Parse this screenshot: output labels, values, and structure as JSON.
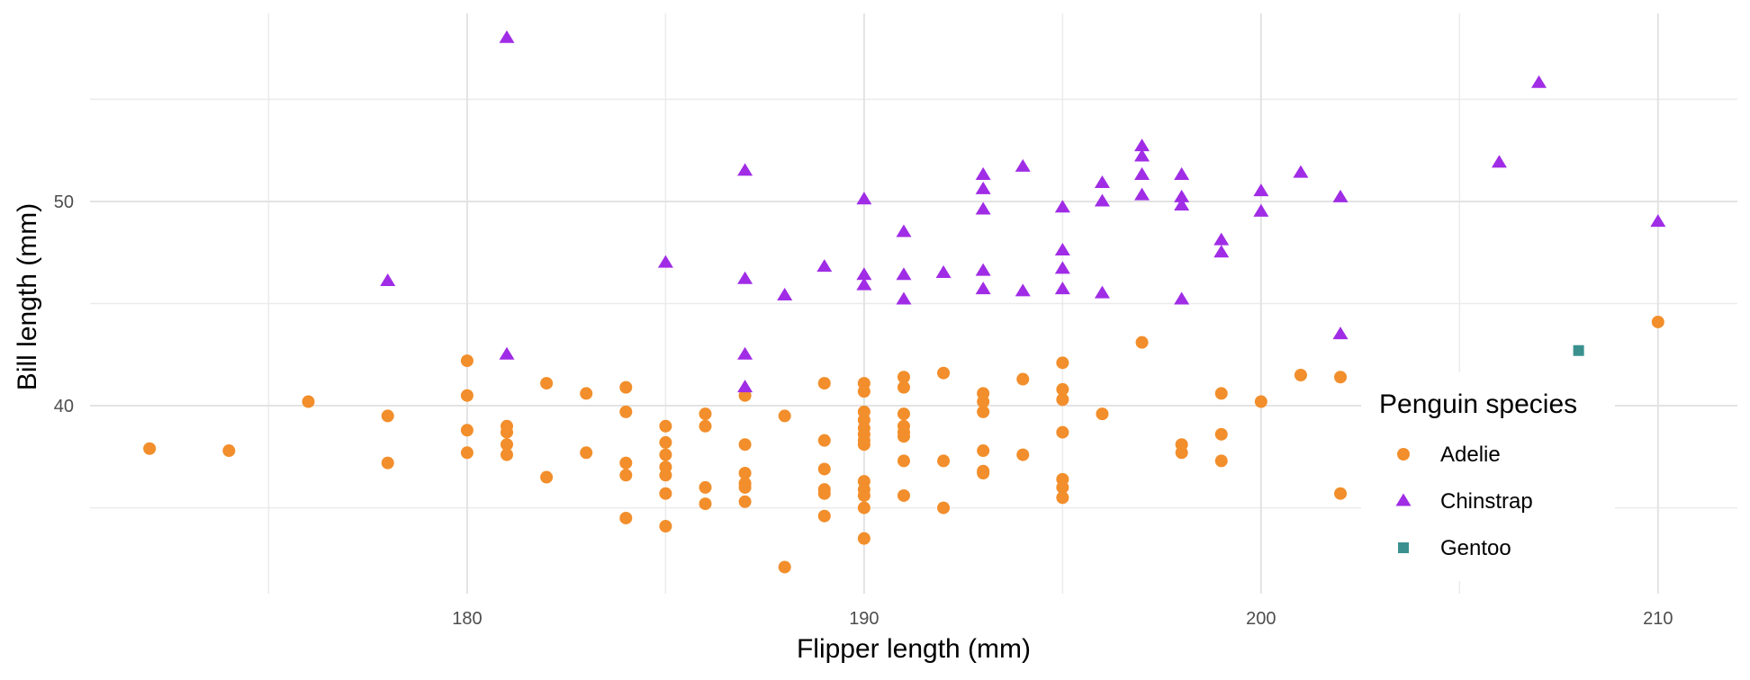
{
  "chart_data": {
    "type": "scatter",
    "title": "",
    "xlabel": "Flipper length (mm)",
    "ylabel": "Bill length (mm)",
    "xlim": [
      170.5,
      212
    ],
    "ylim": [
      30.8,
      59.2
    ],
    "x_ticks": [
      180,
      190,
      200,
      210
    ],
    "y_ticks": [
      40,
      50
    ],
    "grid": true,
    "legend": {
      "title": "Penguin species",
      "placement": "right"
    },
    "series": [
      {
        "name": "Adelie",
        "marker": "circle",
        "color": "#f28e2b",
        "points": [
          [
            172,
            37.9
          ],
          [
            174,
            37.8
          ],
          [
            176,
            40.2
          ],
          [
            178,
            39.5
          ],
          [
            178,
            37.2
          ],
          [
            180,
            42.2
          ],
          [
            180,
            40.5
          ],
          [
            180,
            38.8
          ],
          [
            180,
            37.7
          ],
          [
            181,
            39.0
          ],
          [
            181,
            38.7
          ],
          [
            181,
            38.1
          ],
          [
            181,
            37.6
          ],
          [
            182,
            41.1
          ],
          [
            182,
            36.5
          ],
          [
            183,
            40.6
          ],
          [
            183,
            37.7
          ],
          [
            184,
            40.9
          ],
          [
            184,
            39.7
          ],
          [
            184,
            37.2
          ],
          [
            184,
            36.6
          ],
          [
            184,
            34.5
          ],
          [
            185,
            39.0
          ],
          [
            185,
            38.2
          ],
          [
            185,
            37.6
          ],
          [
            185,
            37.0
          ],
          [
            185,
            36.6
          ],
          [
            185,
            35.7
          ],
          [
            185,
            34.1
          ],
          [
            186,
            39.6
          ],
          [
            186,
            39.0
          ],
          [
            186,
            36.0
          ],
          [
            186,
            35.2
          ],
          [
            187,
            40.5
          ],
          [
            187,
            38.1
          ],
          [
            187,
            36.7
          ],
          [
            187,
            36.2
          ],
          [
            187,
            36.0
          ],
          [
            187,
            35.3
          ],
          [
            188,
            39.5
          ],
          [
            188,
            32.1
          ],
          [
            189,
            41.1
          ],
          [
            189,
            38.3
          ],
          [
            189,
            36.9
          ],
          [
            189,
            35.9
          ],
          [
            189,
            35.7
          ],
          [
            189,
            34.6
          ],
          [
            190,
            41.1
          ],
          [
            190,
            40.7
          ],
          [
            190,
            39.7
          ],
          [
            190,
            39.3
          ],
          [
            190,
            38.9
          ],
          [
            190,
            38.6
          ],
          [
            190,
            38.3
          ],
          [
            190,
            38.1
          ],
          [
            190,
            36.3
          ],
          [
            190,
            35.9
          ],
          [
            190,
            35.6
          ],
          [
            190,
            35.0
          ],
          [
            190,
            33.5
          ],
          [
            191,
            41.4
          ],
          [
            191,
            40.9
          ],
          [
            191,
            39.6
          ],
          [
            191,
            39.0
          ],
          [
            191,
            38.7
          ],
          [
            191,
            38.5
          ],
          [
            191,
            37.3
          ],
          [
            191,
            35.6
          ],
          [
            192,
            41.6
          ],
          [
            192,
            37.3
          ],
          [
            192,
            35.0
          ],
          [
            193,
            40.6
          ],
          [
            193,
            40.2
          ],
          [
            193,
            39.7
          ],
          [
            193,
            37.8
          ],
          [
            193,
            36.8
          ],
          [
            193,
            36.7
          ],
          [
            194,
            41.3
          ],
          [
            194,
            37.6
          ],
          [
            195,
            42.1
          ],
          [
            195,
            40.8
          ],
          [
            195,
            40.3
          ],
          [
            195,
            38.7
          ],
          [
            195,
            36.4
          ],
          [
            195,
            36.0
          ],
          [
            195,
            35.5
          ],
          [
            196,
            39.6
          ],
          [
            197,
            43.1
          ],
          [
            198,
            38.1
          ],
          [
            198,
            37.7
          ],
          [
            199,
            40.6
          ],
          [
            199,
            38.6
          ],
          [
            199,
            37.3
          ],
          [
            200,
            40.2
          ],
          [
            201,
            41.5
          ],
          [
            202,
            41.4
          ],
          [
            202,
            35.7
          ],
          [
            210,
            44.1
          ]
        ]
      },
      {
        "name": "Chinstrap",
        "marker": "triangle",
        "color": "#a02ce6",
        "points": [
          [
            178,
            46.1
          ],
          [
            181,
            58.0
          ],
          [
            181,
            42.5
          ],
          [
            185,
            47.0
          ],
          [
            187,
            51.5
          ],
          [
            187,
            46.2
          ],
          [
            187,
            42.5
          ],
          [
            187,
            40.9
          ],
          [
            188,
            45.4
          ],
          [
            189,
            46.8
          ],
          [
            190,
            50.1
          ],
          [
            190,
            46.4
          ],
          [
            190,
            45.9
          ],
          [
            191,
            48.5
          ],
          [
            191,
            46.4
          ],
          [
            191,
            45.2
          ],
          [
            192,
            46.5
          ],
          [
            193,
            51.3
          ],
          [
            193,
            50.6
          ],
          [
            193,
            49.6
          ],
          [
            193,
            46.6
          ],
          [
            193,
            45.7
          ],
          [
            194,
            51.7
          ],
          [
            194,
            45.6
          ],
          [
            195,
            49.7
          ],
          [
            195,
            47.6
          ],
          [
            195,
            46.7
          ],
          [
            195,
            45.7
          ],
          [
            196,
            50.9
          ],
          [
            196,
            50.0
          ],
          [
            196,
            45.5
          ],
          [
            197,
            52.7
          ],
          [
            197,
            52.2
          ],
          [
            197,
            51.3
          ],
          [
            197,
            50.3
          ],
          [
            198,
            51.3
          ],
          [
            198,
            50.2
          ],
          [
            198,
            49.8
          ],
          [
            198,
            45.2
          ],
          [
            199,
            48.1
          ],
          [
            199,
            47.5
          ],
          [
            200,
            50.5
          ],
          [
            200,
            49.5
          ],
          [
            201,
            51.4
          ],
          [
            202,
            50.2
          ],
          [
            202,
            43.5
          ],
          [
            206,
            51.9
          ],
          [
            207,
            55.8
          ],
          [
            210,
            49.0
          ]
        ]
      },
      {
        "name": "Gentoo",
        "marker": "square",
        "color": "#3a918e",
        "points": [
          [
            208,
            42.7
          ]
        ]
      }
    ]
  }
}
